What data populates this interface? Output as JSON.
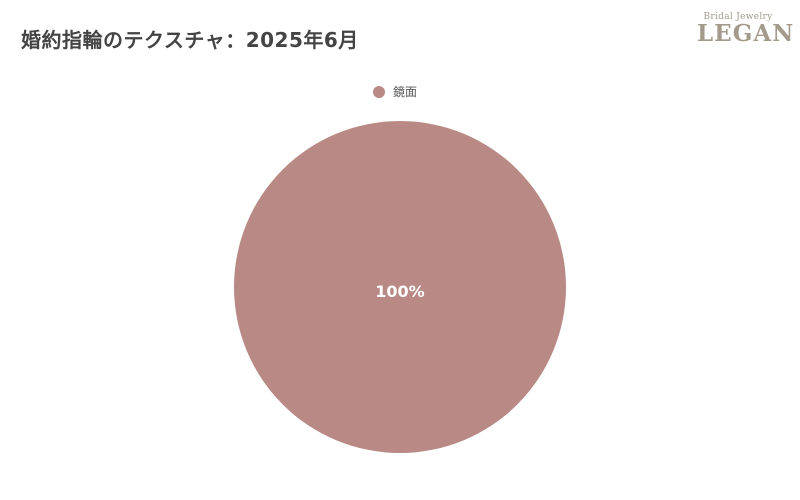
{
  "logo": {
    "line1": "Bridal Jewelry",
    "line2": "LEGAN"
  },
  "chart_data": {
    "type": "pie",
    "title": "婚約指輪のテクスチャ：2025年6月",
    "legend_position": "top",
    "slices": [
      {
        "label": "鏡面",
        "value": 100,
        "data_label": "100%",
        "color": "#b88985"
      }
    ]
  }
}
